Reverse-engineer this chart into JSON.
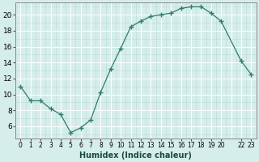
{
  "x": [
    0,
    1,
    2,
    3,
    4,
    5,
    6,
    7,
    8,
    9,
    10,
    11,
    12,
    13,
    14,
    15,
    16,
    17,
    18,
    19,
    20,
    22,
    23
  ],
  "y": [
    11,
    9.2,
    9.2,
    8.2,
    7.5,
    5.2,
    5.8,
    6.8,
    10.3,
    13.2,
    15.8,
    18.5,
    19.2,
    19.8,
    20.0,
    20.2,
    20.8,
    21.0,
    21.0,
    20.2,
    19.2,
    14.2,
    12.5
  ],
  "line_color": "#2e7d6e",
  "marker": "+",
  "marker_size": 4,
  "bg_color": "#d6eeeb",
  "grid_major_color": "#b8d8d4",
  "grid_white_color": "#ffffff",
  "xlabel": "Humidex (Indice chaleur)",
  "xlim": [
    -0.5,
    23.5
  ],
  "ylim": [
    4.5,
    21.5
  ],
  "yticks": [
    6,
    8,
    10,
    12,
    14,
    16,
    18,
    20
  ],
  "xtick_positions": [
    0,
    1,
    2,
    3,
    4,
    5,
    6,
    7,
    8,
    9,
    10,
    11,
    12,
    13,
    14,
    15,
    16,
    17,
    18,
    19,
    20,
    22,
    23
  ],
  "xtick_labels": [
    "0",
    "1",
    "2",
    "3",
    "4",
    "5",
    "6",
    "7",
    "8",
    "9",
    "10",
    "11",
    "12",
    "13",
    "14",
    "15",
    "16",
    "17",
    "18",
    "19",
    "20",
    "22",
    "23"
  ]
}
